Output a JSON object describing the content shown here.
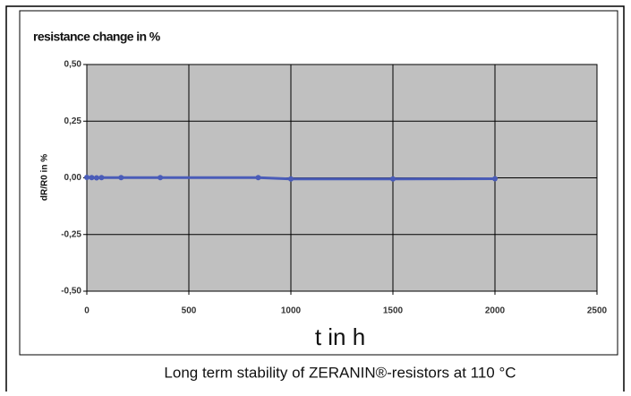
{
  "chart_data": {
    "type": "line",
    "title": "resistance change in %",
    "y_label": "dR/R0 in %",
    "x_label": "t in h",
    "caption": "Long term stability of ZERANIN®-resistors at 110 °C",
    "x": [
      0,
      24,
      48,
      72,
      168,
      360,
      840,
      1000,
      1500,
      2000
    ],
    "series": [
      {
        "name": "dR/R0",
        "color": "#4a5cb8",
        "values": [
          0.002,
          0.001,
          0,
          0.001,
          0.001,
          0.001,
          0.001,
          -0.005,
          -0.005,
          -0.004
        ]
      }
    ],
    "xlim": [
      0,
      2500
    ],
    "xticks": [
      0,
      500,
      1000,
      1500,
      2000,
      2500
    ],
    "ylim": [
      -0.5,
      0.5
    ],
    "yticks": [
      {
        "value": -0.5,
        "label": "-0,50"
      },
      {
        "value": -0.25,
        "label": "-0,25"
      },
      {
        "value": 0,
        "label": "0,00"
      },
      {
        "value": 0.25,
        "label": "0,25"
      },
      {
        "value": 0.5,
        "label": "0,50"
      }
    ],
    "grid": true
  }
}
